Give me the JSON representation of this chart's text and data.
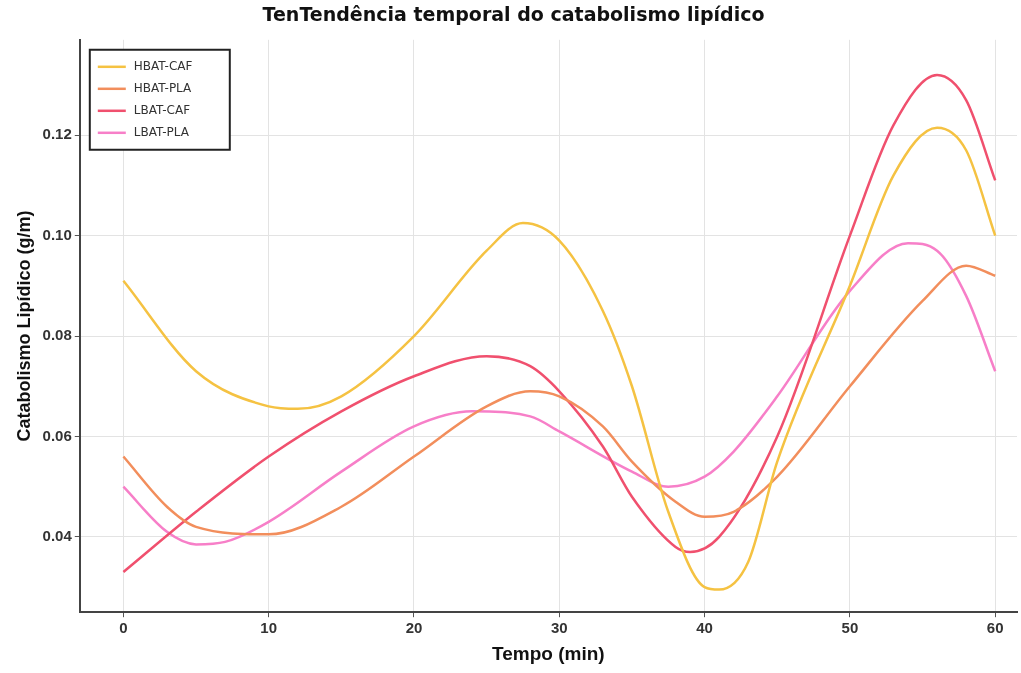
{
  "chart_data": {
    "type": "line",
    "title": "TenTendência temporal do catabolismo lipídico",
    "xlabel": "Tempo (min)",
    "ylabel": "Catabolismo Lipídico (g/m)",
    "xlim": [
      -3,
      61.5
    ],
    "ylim": [
      0.025,
      0.139
    ],
    "xticks": [
      0,
      10,
      20,
      30,
      40,
      50,
      60
    ],
    "yticks": [
      {
        "value": 0.04,
        "label": "0.04"
      },
      {
        "value": 0.06,
        "label": "0.06"
      },
      {
        "value": 0.08,
        "label": "0.08"
      },
      {
        "value": 0.1,
        "label": "0.10"
      },
      {
        "value": 0.12,
        "label": "0.12"
      }
    ],
    "grid": true,
    "legend": "top left",
    "marker": "none",
    "line_style": "solid",
    "series": [
      {
        "name": "HBAT-CAF",
        "color": "#f5c242",
        "x": [
          0,
          5,
          10,
          12,
          15,
          20,
          25,
          27.5,
          30,
          33,
          35,
          37.5,
          40,
          41,
          43,
          45,
          50,
          53,
          56,
          58,
          60
        ],
        "values": [
          0.091,
          0.073,
          0.066,
          0.0655,
          0.068,
          0.08,
          0.097,
          0.1025,
          0.099,
          0.085,
          0.07,
          0.045,
          0.03,
          0.0295,
          0.035,
          0.055,
          0.09,
          0.112,
          0.1215,
          0.117,
          0.1
        ]
      },
      {
        "name": "HBAT-PLA",
        "color": "#f28e5c",
        "x": [
          0,
          3,
          5,
          10,
          15,
          20,
          25,
          28,
          30,
          33,
          35,
          38,
          40,
          42,
          45,
          50,
          55,
          58,
          60
        ],
        "values": [
          0.056,
          0.046,
          0.042,
          0.0405,
          0.046,
          0.056,
          0.066,
          0.069,
          0.068,
          0.062,
          0.055,
          0.047,
          0.044,
          0.045,
          0.052,
          0.07,
          0.087,
          0.094,
          0.092
        ]
      },
      {
        "name": "LBAT-CAF",
        "color": "#f0506e",
        "x": [
          0,
          5,
          10,
          15,
          20,
          25,
          28,
          30,
          33,
          35,
          38,
          39,
          41,
          45,
          50,
          53,
          56,
          58,
          60
        ],
        "values": [
          0.033,
          0.045,
          0.056,
          0.065,
          0.072,
          0.076,
          0.074,
          0.069,
          0.058,
          0.048,
          0.038,
          0.037,
          0.04,
          0.06,
          0.1,
          0.122,
          0.132,
          0.127,
          0.111
        ]
      },
      {
        "name": "LBAT-PLA",
        "color": "#f77fc8",
        "x": [
          0,
          3,
          5,
          7,
          10,
          15,
          20,
          24,
          28,
          30,
          35,
          37.5,
          40,
          42,
          45,
          50,
          54,
          56,
          58,
          60
        ],
        "values": [
          0.05,
          0.041,
          0.0385,
          0.039,
          0.043,
          0.053,
          0.062,
          0.065,
          0.064,
          0.061,
          0.053,
          0.05,
          0.052,
          0.057,
          0.068,
          0.089,
          0.0985,
          0.097,
          0.088,
          0.073
        ]
      }
    ]
  }
}
